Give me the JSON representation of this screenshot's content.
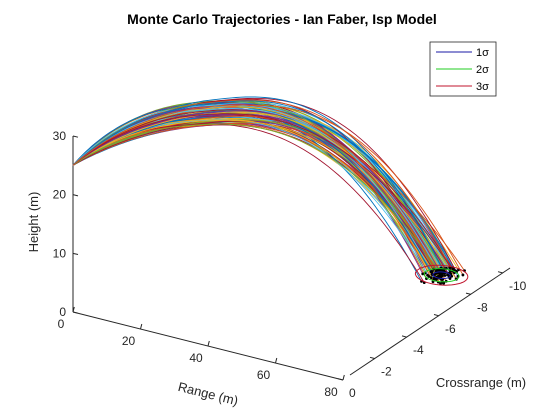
{
  "chart_data": {
    "type": "line",
    "title": "Monte Carlo Trajectories - Ian Faber, Isp Model",
    "xlabel": "Range (m)",
    "ylabel": "Crossrange (m)",
    "zlabel": "Height (m)",
    "xlim": [
      0,
      80
    ],
    "ylim": [
      -10,
      0
    ],
    "zlim": [
      0,
      30
    ],
    "xticks": [
      "0",
      "20",
      "40",
      "60",
      "80"
    ],
    "yticks": [
      "-10",
      "-8",
      "-6",
      "-4",
      "-2",
      "0"
    ],
    "zticks": [
      "0",
      "10",
      "20",
      "30"
    ],
    "legend_position": "top-right",
    "grid": false,
    "launch_point": {
      "x": 0,
      "y": 0,
      "z": 25
    },
    "trajectory_count": 100,
    "peak_height_range": [
      31.5,
      35.5
    ],
    "impact_range_x": [
      63,
      72
    ],
    "impact_range_y": [
      -9.5,
      -8.0
    ],
    "impact_mean": {
      "x": 67.5,
      "y": -8.8
    },
    "error_ellipses": [
      {
        "name": "1σ",
        "color": "#1a1aa6",
        "semi_x": 2.3,
        "semi_y": 0.25
      },
      {
        "name": "2σ",
        "color": "#22cc22",
        "semi_x": 4.6,
        "semi_y": 0.5
      },
      {
        "name": "3σ",
        "color": "#c0142c",
        "semi_x": 6.9,
        "semi_y": 0.75
      }
    ],
    "series_colors": [
      "#0072bd",
      "#d95319",
      "#edb120",
      "#7e2f8e",
      "#77ac30",
      "#4dbeee",
      "#a2142f"
    ]
  }
}
